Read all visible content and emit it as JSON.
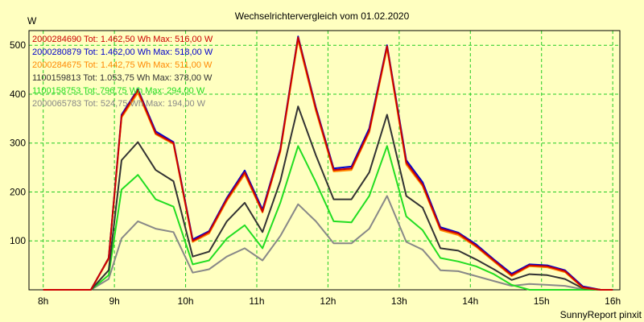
{
  "chart_data": {
    "type": "line",
    "title": "Wechselrichtervergleich vom 01.02.2020",
    "ylabel": "W",
    "xlabel": "",
    "footer": "SunnyReport pinxit",
    "xlim": [
      7.8,
      16.1
    ],
    "ylim": [
      0,
      530
    ],
    "xticks": [
      8,
      9,
      10,
      11,
      12,
      13,
      14,
      15,
      16
    ],
    "xtick_labels": [
      "8h",
      "9h",
      "10h",
      "11h",
      "12h",
      "13h",
      "14h",
      "15h",
      "16h"
    ],
    "yticks": [
      100,
      200,
      300,
      400,
      500
    ],
    "ytick_labels": [
      "100",
      "200",
      "300",
      "400",
      "500"
    ],
    "grid": true,
    "legend_position": "top-left",
    "x": [
      8.0,
      8.25,
      8.5,
      8.67,
      8.92,
      9.1,
      9.33,
      9.58,
      9.83,
      10.1,
      10.33,
      10.58,
      10.83,
      11.08,
      11.33,
      11.58,
      11.83,
      12.08,
      12.33,
      12.58,
      12.83,
      13.1,
      13.33,
      13.58,
      13.83,
      14.08,
      14.33,
      14.58,
      14.83,
      15.08,
      15.33,
      15.58,
      15.83,
      16.0
    ],
    "series": [
      {
        "name": "2000284690",
        "legend": "2000284690 Tot: 1.462,50 Wh Max: 516,00 W",
        "color": "#cc0000",
        "values": [
          0,
          0,
          0,
          0,
          65,
          355,
          408,
          320,
          300,
          100,
          118,
          185,
          240,
          160,
          285,
          516,
          370,
          245,
          248,
          325,
          498,
          260,
          215,
          125,
          115,
          90,
          60,
          30,
          50,
          48,
          38,
          5,
          0,
          0
        ]
      },
      {
        "name": "2000280879",
        "legend": "2000280879 Tot: 1.462,00 Wh Max: 518,00 W",
        "color": "#0000cc",
        "values": [
          0,
          0,
          0,
          0,
          65,
          358,
          410,
          324,
          302,
          103,
          120,
          188,
          244,
          164,
          288,
          518,
          373,
          248,
          252,
          330,
          500,
          265,
          220,
          128,
          117,
          93,
          62,
          33,
          52,
          50,
          40,
          7,
          0,
          0
        ]
      },
      {
        "name": "2000284675",
        "legend": "2000284675 Tot: 1.442,75 Wh Max: 511,00 W",
        "color": "#ff8800",
        "values": [
          0,
          0,
          0,
          0,
          63,
          352,
          403,
          318,
          298,
          98,
          115,
          182,
          236,
          158,
          282,
          511,
          366,
          242,
          245,
          322,
          494,
          256,
          212,
          122,
          112,
          88,
          58,
          28,
          48,
          46,
          36,
          4,
          0,
          0
        ]
      },
      {
        "name": "1100159813",
        "legend": "1100159813 Tot: 1.053,75 Wh Max: 378,00 W",
        "color": "#333333",
        "values": [
          0,
          0,
          0,
          0,
          40,
          265,
          302,
          245,
          222,
          68,
          78,
          140,
          178,
          118,
          222,
          375,
          275,
          185,
          185,
          240,
          358,
          192,
          168,
          85,
          80,
          62,
          42,
          20,
          32,
          30,
          22,
          3,
          0,
          0
        ]
      },
      {
        "name": "1100158753",
        "legend": "1100158753 Tot: 796,75 Wh Max: 294,00 W",
        "color": "#22dd22",
        "values": [
          0,
          0,
          0,
          0,
          30,
          205,
          235,
          185,
          170,
          52,
          60,
          105,
          132,
          85,
          178,
          294,
          220,
          140,
          138,
          192,
          294,
          150,
          122,
          65,
          58,
          48,
          32,
          10,
          0,
          0,
          0,
          0,
          0,
          0
        ]
      },
      {
        "name": "2000065783",
        "legend": "2000065783 Tot: 524,75 Wh Max: 194,00 W",
        "color": "#888888",
        "values": [
          0,
          0,
          0,
          0,
          22,
          105,
          140,
          125,
          118,
          35,
          42,
          68,
          85,
          60,
          110,
          175,
          140,
          95,
          95,
          125,
          192,
          98,
          82,
          40,
          38,
          28,
          18,
          8,
          12,
          10,
          8,
          1,
          0,
          0
        ]
      }
    ]
  }
}
